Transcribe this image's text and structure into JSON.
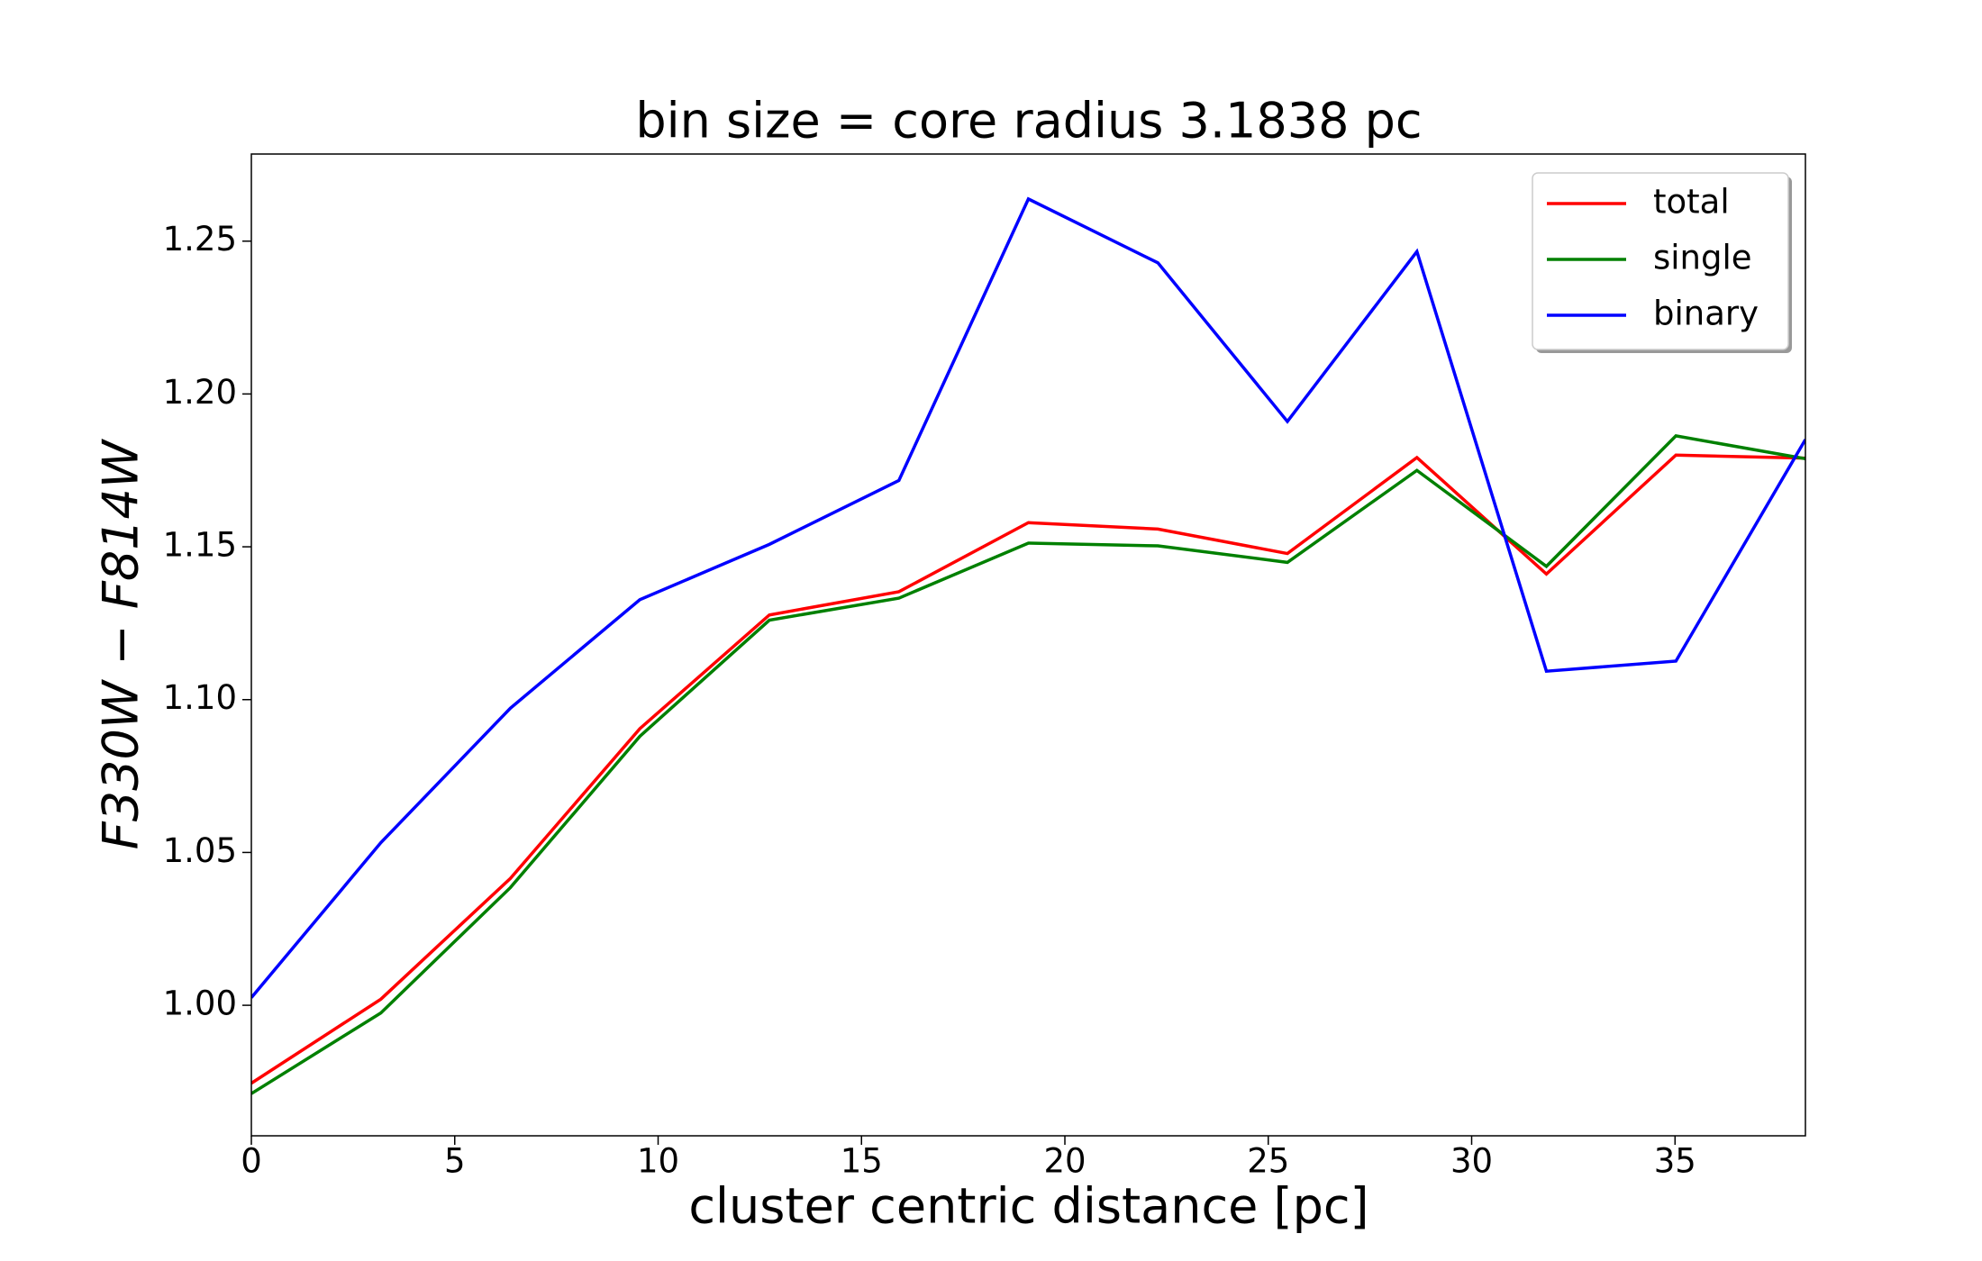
{
  "chart_data": {
    "type": "line",
    "title": "bin size = core radius 3.1838 pc",
    "x_label": "cluster centric distance [pc]",
    "y_label": "F330W − F814W",
    "x": [
      0,
      3.1838,
      6.3676,
      9.5514,
      12.7352,
      15.919,
      19.1028,
      22.2866,
      25.4704,
      28.6542,
      31.838,
      35.0218,
      38.2056
    ],
    "series": [
      {
        "name": "total",
        "color": "#ff0000",
        "values": [
          0.9745,
          1.002,
          1.0415,
          1.0905,
          1.1277,
          1.1353,
          1.1579,
          1.1558,
          1.1478,
          1.1792,
          1.1411,
          1.18,
          1.179
        ]
      },
      {
        "name": "single",
        "color": "#008000",
        "values": [
          0.9711,
          0.9975,
          1.0385,
          1.088,
          1.126,
          1.1332,
          1.1512,
          1.1503,
          1.1449,
          1.175,
          1.1436,
          1.1863,
          1.1788
        ]
      },
      {
        "name": "binary",
        "color": "#0000ff",
        "values": [
          1.0025,
          1.0532,
          1.0972,
          1.1327,
          1.1508,
          1.1717,
          1.2638,
          1.2429,
          1.191,
          1.2466,
          1.1093,
          1.1126,
          1.1851
        ]
      }
    ],
    "xlim": [
      0,
      38.2056
    ],
    "ylim": [
      0.9573,
      1.2785
    ],
    "xticks": [
      0,
      5,
      10,
      15,
      20,
      25,
      30,
      35
    ],
    "yticks": [
      {
        "value": 1,
        "label": "1.00"
      },
      1.05,
      {
        "value": 1.1,
        "label": "1.10"
      },
      1.15,
      {
        "value": 1.2,
        "label": "1.20"
      },
      1.25
    ],
    "legend": "upper right"
  }
}
